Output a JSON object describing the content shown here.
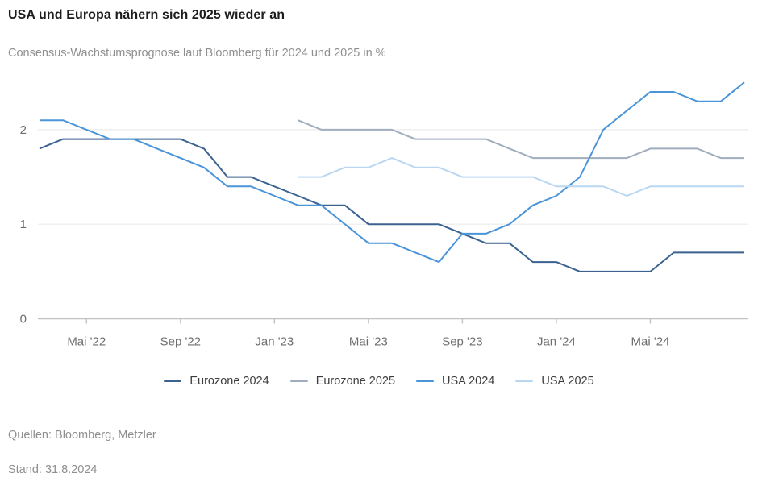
{
  "header": {
    "title": "USA und Europa nähern sich 2025 wieder an",
    "subtitle": "Consensus-Wachstumsprognose laut Bloomberg für 2024 und 2025 in %"
  },
  "footer": {
    "sources": "Quellen: Bloomberg, Metzler",
    "stand": "Stand: 31.8.2024"
  },
  "chart_data": {
    "type": "line",
    "title": "USA und Europa nähern sich 2025 wieder an",
    "subtitle": "Consensus-Wachstumsprognose laut Bloomberg für 2024 und 2025 in %",
    "x_unit": "month",
    "x": [
      "Mär '22",
      "Apr '22",
      "Mai '22",
      "Jun '22",
      "Jul '22",
      "Aug '22",
      "Sep '22",
      "Okt '22",
      "Nov '22",
      "Dez '22",
      "Jan '23",
      "Feb '23",
      "Mär '23",
      "Apr '23",
      "Mai '23",
      "Jun '23",
      "Jul '23",
      "Aug '23",
      "Sep '23",
      "Okt '23",
      "Nov '23",
      "Dez '23",
      "Jan '24",
      "Feb '24",
      "Mär '24",
      "Apr '24",
      "Mai '24",
      "Jun '24",
      "Jul '24",
      "Aug '24",
      "Sep '24"
    ],
    "x_tick_indices": [
      2,
      6,
      10,
      14,
      18,
      22,
      26
    ],
    "x_tick_labels": [
      "Mai '22",
      "Sep '22",
      "Jan '23",
      "Mai '23",
      "Sep '23",
      "Jan '24",
      "Mai '24"
    ],
    "y_ticks": [
      0,
      1,
      2
    ],
    "ylim": [
      0,
      2.6
    ],
    "grid": "horizontal",
    "legend_position": "bottom",
    "series": [
      {
        "name": "Eurozone 2024",
        "color": "#3b6290",
        "values": [
          1.8,
          1.9,
          1.9,
          1.9,
          1.9,
          1.9,
          1.9,
          1.8,
          1.5,
          1.5,
          1.4,
          1.3,
          1.2,
          1.2,
          1.0,
          1.0,
          1.0,
          1.0,
          0.9,
          0.8,
          0.8,
          0.6,
          0.6,
          0.5,
          0.5,
          0.5,
          0.5,
          0.7,
          0.7,
          0.7,
          0.7
        ]
      },
      {
        "name": "Eurozone 2025",
        "color": "#9fadbe",
        "values": [
          null,
          null,
          null,
          null,
          null,
          null,
          null,
          null,
          null,
          null,
          null,
          2.1,
          2.0,
          2.0,
          2.0,
          2.0,
          1.9,
          1.9,
          1.9,
          1.9,
          1.8,
          1.7,
          1.7,
          1.7,
          1.7,
          1.7,
          1.8,
          1.8,
          1.8,
          1.7,
          1.7
        ]
      },
      {
        "name": "USA 2024",
        "color": "#4a94da",
        "values": [
          2.1,
          2.1,
          2.0,
          1.9,
          1.9,
          1.8,
          1.7,
          1.6,
          1.4,
          1.4,
          1.3,
          1.2,
          1.2,
          1.0,
          0.8,
          0.8,
          0.7,
          0.6,
          0.9,
          0.9,
          1.0,
          1.2,
          1.3,
          1.5,
          2.0,
          2.2,
          2.4,
          2.4,
          2.3,
          2.3,
          2.5
        ]
      },
      {
        "name": "USA 2025",
        "color": "#bad7f2",
        "values": [
          null,
          null,
          null,
          null,
          null,
          null,
          null,
          null,
          null,
          null,
          null,
          1.5,
          1.5,
          1.6,
          1.6,
          1.7,
          1.6,
          1.6,
          1.5,
          1.5,
          1.5,
          1.5,
          1.4,
          1.4,
          1.4,
          1.3,
          1.4,
          1.4,
          1.4,
          1.4,
          1.4
        ]
      }
    ],
    "colors": {
      "grid": "#ebebeb",
      "axis": "#c2c2c2",
      "tick_label": "#6e6e6e"
    }
  }
}
